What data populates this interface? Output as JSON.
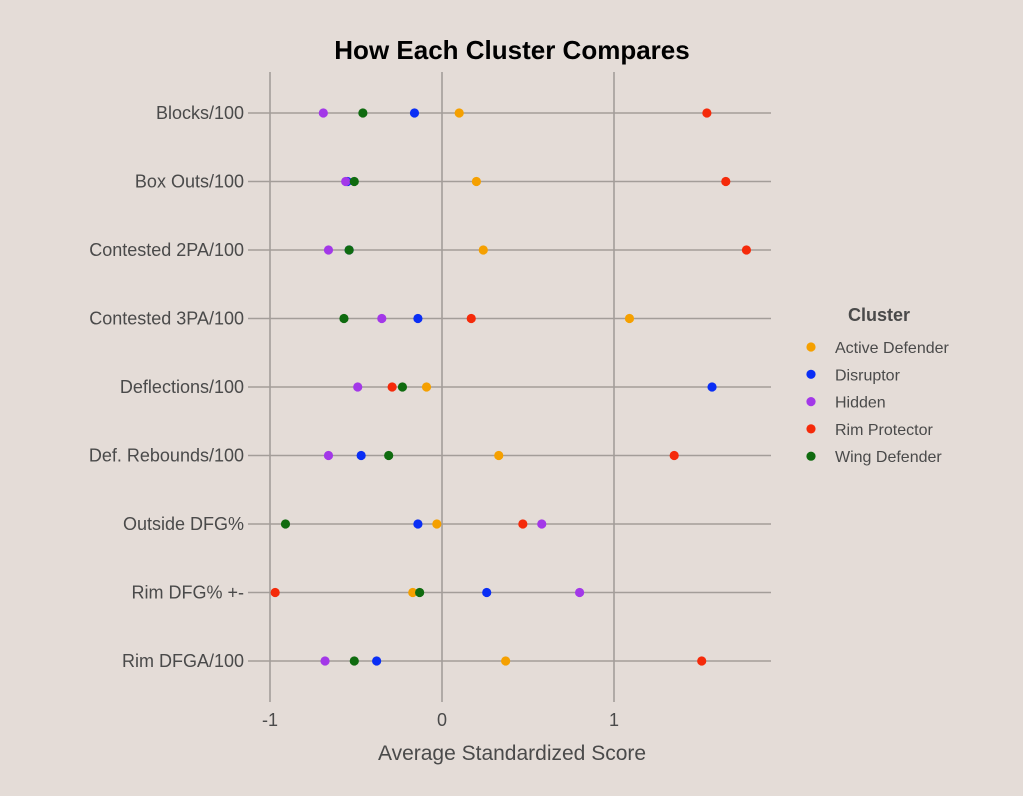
{
  "chart_data": {
    "type": "scatter",
    "title": "How Each Cluster Compares",
    "xlabel": "Average Standardized Score",
    "ylabel": "",
    "xlim": [
      -1.0,
      1.9
    ],
    "x_ticks": [
      "-1",
      "0",
      "1"
    ],
    "grid": true,
    "legend_title": "Cluster",
    "legend_position": "right",
    "categories": [
      "Blocks/100",
      "Box Outs/100",
      "Contested 2PA/100",
      "Contested 3PA/100",
      "Deflections/100",
      "Def. Rebounds/100",
      "Outside DFG%",
      "Rim DFG% +-",
      "Rim DFGA/100"
    ],
    "series": [
      {
        "name": "Active Defender",
        "color": "#f5a000",
        "values": [
          0.1,
          0.2,
          0.24,
          1.09,
          -0.09,
          0.33,
          -0.03,
          -0.17,
          0.37
        ]
      },
      {
        "name": "Disruptor",
        "color": "#0a2ef5",
        "values": [
          -0.16,
          -0.55,
          -0.54,
          -0.14,
          1.57,
          -0.47,
          -0.14,
          0.26,
          -0.38
        ]
      },
      {
        "name": "Hidden",
        "color": "#a338e8",
        "values": [
          -0.69,
          -0.56,
          -0.66,
          -0.35,
          -0.49,
          -0.66,
          0.58,
          0.8,
          -0.68
        ]
      },
      {
        "name": "Rim Protector",
        "color": "#f52a0a",
        "values": [
          1.54,
          1.65,
          1.77,
          0.17,
          -0.29,
          1.35,
          0.47,
          -0.97,
          1.51
        ]
      },
      {
        "name": "Wing Defender",
        "color": "#0f6b0f",
        "values": [
          -0.46,
          -0.51,
          -0.54,
          -0.57,
          -0.23,
          -0.31,
          -0.91,
          -0.13,
          -0.51
        ]
      }
    ]
  }
}
